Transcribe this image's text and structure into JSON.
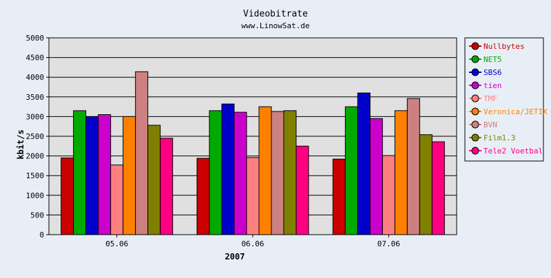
{
  "chart_data": {
    "type": "bar",
    "title": "Videobitrate",
    "subtitle": "www.LinowSat.de",
    "xlabel": "2007",
    "ylabel": "kbit/s",
    "ylim": [
      0,
      5000
    ],
    "yticks": [
      0,
      500,
      1000,
      1500,
      2000,
      2500,
      3000,
      3500,
      4000,
      4500,
      5000
    ],
    "grid": true,
    "legend_position": "right",
    "categories": [
      "05.06",
      "06.06",
      "07.06"
    ],
    "series": [
      {
        "name": "Nullbytes",
        "color": "#cc0000",
        "values": [
          1950,
          1940,
          1920
        ]
      },
      {
        "name": "NET5",
        "color": "#00aa00",
        "values": [
          3150,
          3150,
          3250
        ]
      },
      {
        "name": "SBS6",
        "color": "#0000cc",
        "values": [
          3000,
          3320,
          3600
        ]
      },
      {
        "name": "tien",
        "color": "#cc00cc",
        "values": [
          3050,
          3110,
          2950
        ]
      },
      {
        "name": "TMF",
        "color": "#ff8080",
        "values": [
          1770,
          1960,
          2010
        ]
      },
      {
        "name": "Veronica/JETIX",
        "color": "#ff8000",
        "values": [
          3000,
          3250,
          3150
        ]
      },
      {
        "name": "BVN",
        "color": "#cc8080",
        "values": [
          4140,
          3130,
          3460
        ]
      },
      {
        "name": "Film1.3",
        "color": "#808000",
        "values": [
          2780,
          3150,
          2540
        ]
      },
      {
        "name": "Tele2 Voetbal",
        "color": "#ff0080",
        "values": [
          2450,
          2250,
          2360
        ]
      }
    ]
  }
}
